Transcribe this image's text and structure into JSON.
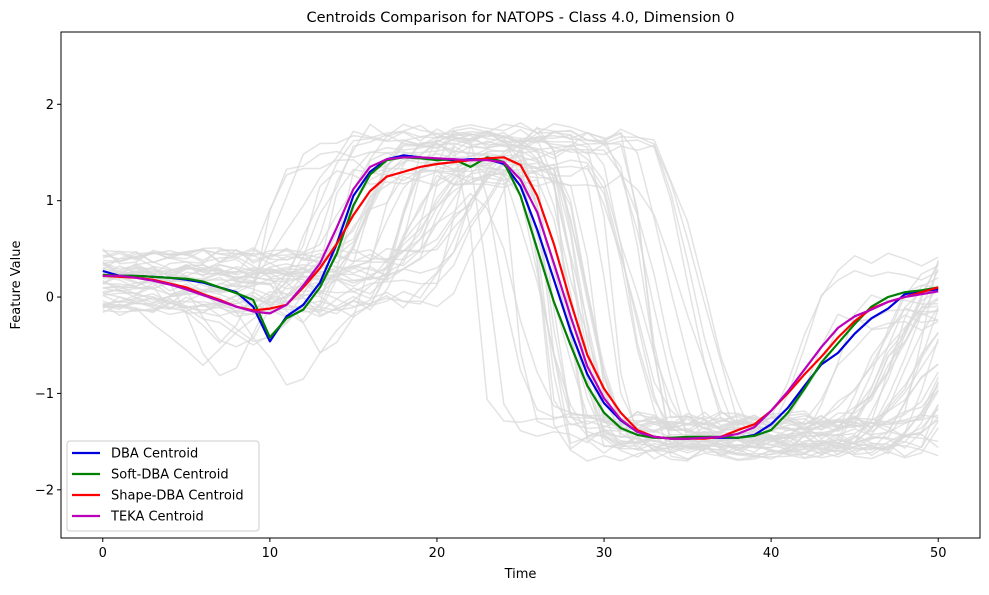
{
  "chart_data": {
    "type": "line",
    "title": "Centroids Comparison for NATOPS - Class 4.0, Dimension 0",
    "xlabel": "Time",
    "ylabel": "Feature Value",
    "xlim": [
      -2.5,
      52.5
    ],
    "ylim": [
      -2.5,
      2.75
    ],
    "xticks": [
      0,
      10,
      20,
      30,
      40,
      50
    ],
    "yticks": [
      2,
      1,
      0,
      -1,
      -2
    ],
    "ytick_labels": [
      "2",
      "1",
      "0",
      "−1",
      "−2"
    ],
    "grid": false,
    "legend_position": "lower-left",
    "background_series_color": "#d9d9d9",
    "background_note_count": 48,
    "x": [
      0,
      1,
      2,
      3,
      4,
      5,
      6,
      7,
      8,
      9,
      10,
      11,
      12,
      13,
      14,
      15,
      16,
      17,
      18,
      19,
      20,
      21,
      22,
      23,
      24,
      25,
      26,
      27,
      28,
      29,
      30,
      31,
      32,
      33,
      34,
      35,
      36,
      37,
      38,
      39,
      40,
      41,
      42,
      43,
      44,
      45,
      46,
      47,
      48,
      49,
      50
    ],
    "series": [
      {
        "name": "DBA Centroid",
        "color": "#0000dd",
        "values": [
          0.27,
          0.22,
          0.22,
          0.21,
          0.2,
          0.18,
          0.15,
          0.1,
          0.05,
          -0.1,
          -0.46,
          -0.2,
          -0.08,
          0.15,
          0.55,
          1.05,
          1.3,
          1.43,
          1.47,
          1.45,
          1.43,
          1.42,
          1.43,
          1.43,
          1.38,
          1.15,
          0.7,
          0.18,
          -0.35,
          -0.8,
          -1.1,
          -1.28,
          -1.4,
          -1.45,
          -1.47,
          -1.47,
          -1.46,
          -1.46,
          -1.46,
          -1.43,
          -1.32,
          -1.15,
          -0.92,
          -0.7,
          -0.58,
          -0.38,
          -0.22,
          -0.12,
          0.03,
          0.06,
          0.08
        ]
      },
      {
        "name": "Soft-DBA Centroid",
        "color": "#008000",
        "values": [
          0.23,
          0.22,
          0.22,
          0.21,
          0.2,
          0.19,
          0.16,
          0.1,
          0.04,
          -0.03,
          -0.42,
          -0.22,
          -0.13,
          0.1,
          0.45,
          0.95,
          1.27,
          1.42,
          1.45,
          1.44,
          1.42,
          1.43,
          1.35,
          1.45,
          1.4,
          1.05,
          0.5,
          -0.05,
          -0.5,
          -0.92,
          -1.2,
          -1.36,
          -1.43,
          -1.46,
          -1.46,
          -1.45,
          -1.45,
          -1.45,
          -1.46,
          -1.44,
          -1.38,
          -1.2,
          -0.95,
          -0.68,
          -0.48,
          -0.28,
          -0.1,
          0.0,
          0.05,
          0.07,
          0.1
        ]
      },
      {
        "name": "Shape-DBA Centroid",
        "color": "#ff0000",
        "values": [
          0.22,
          0.21,
          0.2,
          0.18,
          0.14,
          0.1,
          0.03,
          -0.03,
          -0.1,
          -0.14,
          -0.12,
          -0.08,
          0.1,
          0.3,
          0.55,
          0.85,
          1.1,
          1.25,
          1.3,
          1.35,
          1.38,
          1.4,
          1.42,
          1.44,
          1.45,
          1.37,
          1.05,
          0.55,
          -0.05,
          -0.6,
          -0.95,
          -1.2,
          -1.38,
          -1.45,
          -1.47,
          -1.47,
          -1.47,
          -1.45,
          -1.38,
          -1.32,
          -1.18,
          -1.0,
          -0.8,
          -0.62,
          -0.42,
          -0.25,
          -0.12,
          -0.05,
          0.0,
          0.05,
          0.1
        ]
      },
      {
        "name": "TEKA Centroid",
        "color": "#bb00bb",
        "values": [
          0.22,
          0.22,
          0.2,
          0.17,
          0.13,
          0.08,
          0.02,
          -0.04,
          -0.1,
          -0.15,
          -0.17,
          -0.08,
          0.12,
          0.35,
          0.72,
          1.12,
          1.35,
          1.43,
          1.45,
          1.45,
          1.44,
          1.43,
          1.42,
          1.42,
          1.4,
          1.22,
          0.88,
          0.35,
          -0.2,
          -0.72,
          -1.05,
          -1.27,
          -1.4,
          -1.45,
          -1.47,
          -1.47,
          -1.46,
          -1.45,
          -1.42,
          -1.35,
          -1.18,
          -0.98,
          -0.75,
          -0.52,
          -0.32,
          -0.2,
          -0.13,
          -0.05,
          0.0,
          0.03,
          0.06
        ]
      }
    ]
  }
}
